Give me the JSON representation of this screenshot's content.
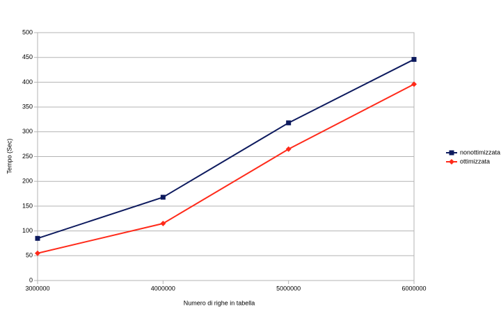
{
  "chart_data": {
    "type": "line",
    "x_label": "Numero di righe in tabella",
    "y_label": "Tempo (Sec)",
    "x": [
      3000000,
      4000000,
      5000000,
      6000000
    ],
    "series": [
      {
        "name": "nonottimizzata",
        "color": "#0d1a5e",
        "marker": "square",
        "values": [
          85,
          168,
          318,
          446
        ]
      },
      {
        "name": "ottimizzata",
        "color": "#ff2a1a",
        "marker": "diamond",
        "values": [
          55,
          115,
          265,
          396
        ]
      }
    ],
    "xlim": [
      3000000,
      6000000
    ],
    "xticks": [
      3000000,
      4000000,
      5000000,
      6000000
    ],
    "ylim": [
      0,
      500
    ],
    "yticks": [
      0,
      50,
      100,
      150,
      200,
      250,
      300,
      350,
      400,
      450,
      500
    ],
    "grid": true,
    "legend": "right"
  }
}
